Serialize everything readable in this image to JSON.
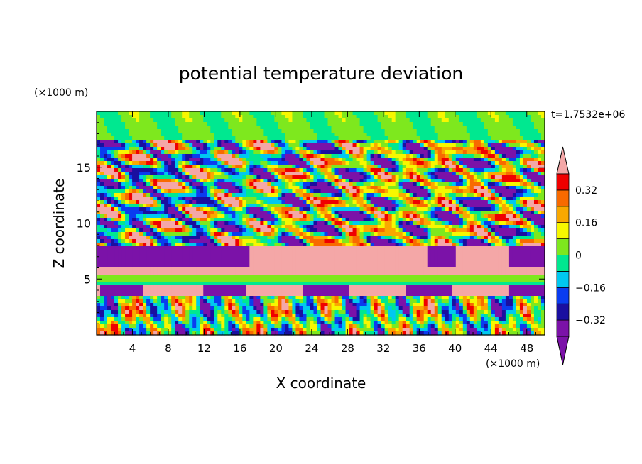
{
  "chart_data": {
    "type": "heatmap",
    "title": "potential temperature deviation",
    "xlabel": "X coordinate",
    "ylabel": "Z coordinate",
    "x_unit": "(×1000 m)",
    "y_unit": "(×1000 m)",
    "time_label": "t=1.7532e+06",
    "xlim": [
      0,
      50
    ],
    "ylim": [
      0,
      20
    ],
    "x_ticks": [
      "4",
      "8",
      "12",
      "16",
      "20",
      "24",
      "28",
      "32",
      "36",
      "40",
      "44",
      "48"
    ],
    "x_tick_values": [
      4,
      8,
      12,
      16,
      20,
      24,
      28,
      32,
      36,
      40,
      44,
      48
    ],
    "y_ticks": [
      "5",
      "10",
      "15"
    ],
    "y_tick_values": [
      5,
      10,
      15
    ],
    "colorbar": {
      "levels": [
        -0.4,
        -0.32,
        -0.24,
        -0.16,
        -0.08,
        0,
        0.08,
        0.16,
        0.24,
        0.32,
        0.4
      ],
      "labels": [
        "−0.32",
        "−0.16",
        "0",
        "0.16",
        "0.32"
      ],
      "label_values": [
        -0.32,
        -0.16,
        0,
        0.16,
        0.32
      ],
      "under_color": "#7b12a8",
      "over_color": "#f4a7a7",
      "colors": [
        "#7b12a8",
        "#1a0fa0",
        "#0a3cf0",
        "#00c8f0",
        "#00e890",
        "#7ee81e",
        "#f7f700",
        "#f9a800",
        "#f86a00",
        "#f00000",
        "#f4a7a7"
      ]
    }
  }
}
